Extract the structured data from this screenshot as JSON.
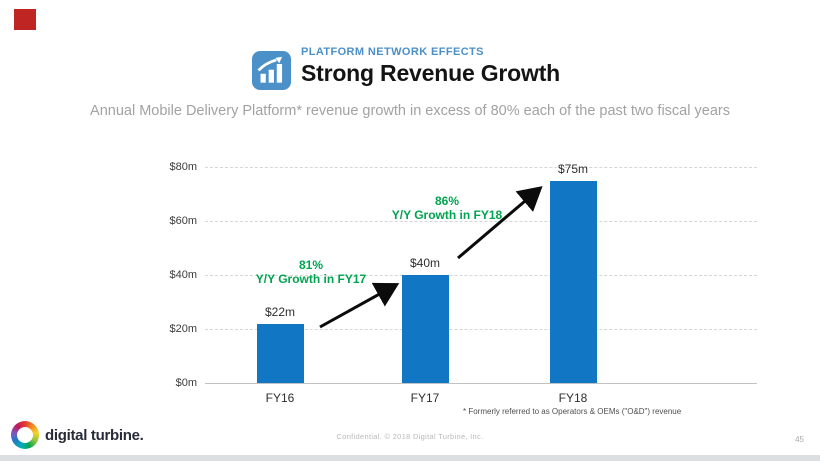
{
  "header": {
    "kicker": "PLATFORM NETWORK EFFECTS",
    "title": "Strong Revenue Growth",
    "subtitle": "Annual Mobile Delivery Platform* revenue growth in excess of 80% each of the past two fiscal years",
    "chart_icon": "bar-chart-with-arrow-icon"
  },
  "chart_data": {
    "type": "bar",
    "categories": [
      "FY16",
      "FY17",
      "FY18"
    ],
    "values": [
      22,
      40,
      75
    ],
    "bar_labels": [
      "$22m",
      "$40m",
      "$75m"
    ],
    "ytick_labels": [
      "$0m",
      "$20m",
      "$40m",
      "$60m",
      "$80m"
    ],
    "ylim": [
      0,
      80
    ],
    "xlabel": "",
    "ylabel": "",
    "grid": "horizontal-dashed",
    "legend": "none",
    "bar_color": "#1177c4",
    "annotations": [
      {
        "text_lines": [
          "81%",
          "Y/Y Growth in FY17"
        ],
        "color": "#00a44f",
        "from": "FY16",
        "to": "FY17"
      },
      {
        "text_lines": [
          "86%",
          "Y/Y Growth in FY18"
        ],
        "color": "#00a44f",
        "from": "FY17",
        "to": "FY18"
      }
    ]
  },
  "footnote": "* Formerly referred to as Operators & OEMs (\"O&D\") revenue",
  "footer": {
    "confidential": "Confidential. © 2018 Digital Turbine, Inc.",
    "page_number": "45",
    "logo_text": "digital turbine."
  },
  "colors": {
    "accent_blue": "#4b90c8",
    "bar_blue": "#1177c4",
    "growth_green": "#00a44f",
    "subtitle_gray": "#a2a2a2",
    "marker_red": "#bf2522"
  }
}
